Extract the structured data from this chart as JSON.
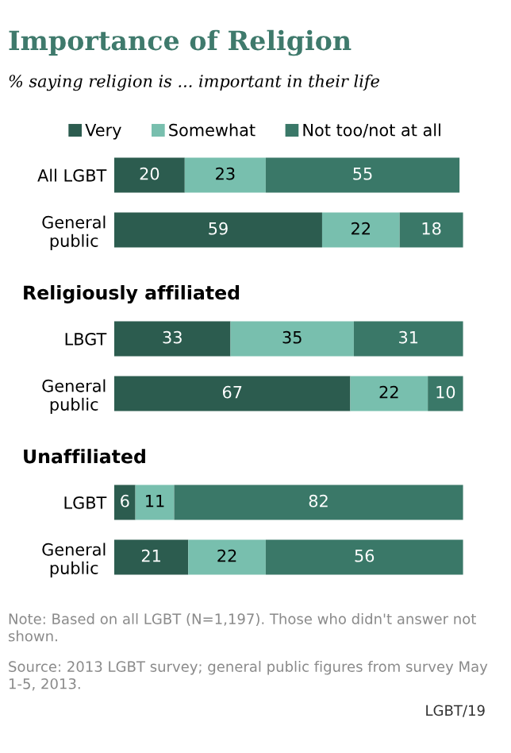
{
  "chart_data": [
    {
      "type": "bar",
      "orientation": "horizontal",
      "stacked": true,
      "title": "Importance of Religion",
      "subtitle": "% saying religion is ... important in their life",
      "categories": [
        "All LGBT",
        "General\npublic"
      ],
      "xlim": [
        0,
        100
      ],
      "tick_labels": "y",
      "data_labels": true,
      "legend": "top",
      "grid": false,
      "series": [
        {
          "name": "Very",
          "color": "#2c5c4f",
          "values": [
            20,
            59
          ]
        },
        {
          "name": "Somewhat",
          "color": "#78bfae",
          "values": [
            23,
            22
          ]
        },
        {
          "name": "Not too/not at all",
          "color": "#3a7868",
          "values": [
            55,
            18
          ]
        }
      ]
    },
    {
      "type": "bar",
      "orientation": "horizontal",
      "stacked": true,
      "title": "Religiously affiliated",
      "categories": [
        "LBGT",
        "General\npublic"
      ],
      "xlim": [
        0,
        100
      ],
      "tick_labels": "y",
      "data_labels": true,
      "grid": false,
      "series": [
        {
          "color": "#2c5c4f",
          "values": [
            33,
            67
          ]
        },
        {
          "color": "#78bfae",
          "values": [
            35,
            22
          ]
        },
        {
          "color": "#3a7868",
          "values": [
            31,
            10
          ]
        }
      ]
    },
    {
      "type": "bar",
      "orientation": "horizontal",
      "stacked": true,
      "title": "Unaffiliated",
      "categories": [
        "LGBT",
        "General\npublic"
      ],
      "xlim": [
        0,
        100
      ],
      "tick_labels": "y",
      "data_labels": true,
      "grid": false,
      "series": [
        {
          "color": "#2c5c4f",
          "values": [
            6,
            21
          ]
        },
        {
          "color": "#78bfae",
          "values": [
            11,
            22
          ]
        },
        {
          "color": "#3a7868",
          "values": [
            82,
            56
          ]
        }
      ],
      "annotations": [
        "Note: Based on all LGBT (N=1,197). Those who didn't answer not shown.",
        "Source: 2013 LGBT survey; general public figures from survey May 1-5, 2013.",
        "LGBT/19"
      ]
    }
  ]
}
